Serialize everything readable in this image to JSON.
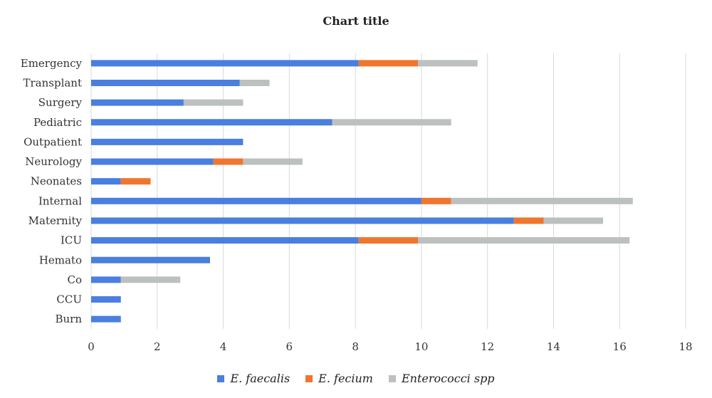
{
  "chart_data": {
    "type": "bar",
    "orientation": "horizontal",
    "stacked": true,
    "title": "Chart title",
    "categories": [
      "Emergency",
      "Transplant",
      "Surgery",
      "Pediatric",
      "Outpatient",
      "Neurology",
      "Neonates",
      "Internal",
      "Maternity",
      "ICU",
      "Hemato",
      "Co",
      "CCU",
      "Burn"
    ],
    "series": [
      {
        "name": "E. faecalis",
        "color": "#4A7EE0",
        "values": [
          8.1,
          4.5,
          2.8,
          7.3,
          4.6,
          3.7,
          0.9,
          10.0,
          12.8,
          8.1,
          3.6,
          0.9,
          0.9,
          0.9
        ]
      },
      {
        "name": "E. fecium",
        "color": "#F0762F",
        "values": [
          1.8,
          0,
          0,
          0,
          0,
          0.9,
          0.9,
          0.9,
          0.9,
          1.8,
          0,
          0,
          0,
          0
        ]
      },
      {
        "name": "Enterococci spp",
        "color": "#BCC0BE",
        "values": [
          1.8,
          0.9,
          1.8,
          3.6,
          0,
          1.8,
          0,
          5.5,
          1.8,
          6.4,
          0,
          1.8,
          0,
          0
        ]
      }
    ],
    "xlim": [
      0,
      18
    ],
    "xticks": [
      "0",
      "2",
      "4",
      "6",
      "8",
      "10",
      "12",
      "14",
      "16",
      "18"
    ],
    "grid": "vertical",
    "legend_position": "bottom"
  }
}
